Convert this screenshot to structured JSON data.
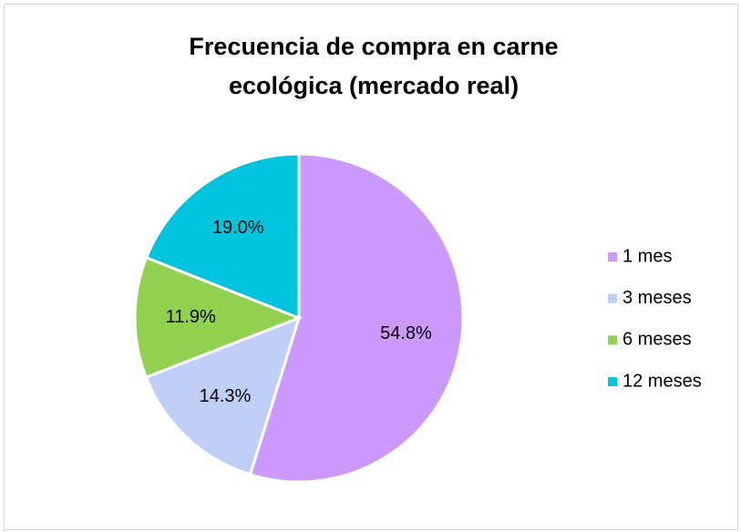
{
  "chart_data": {
    "type": "pie",
    "title": "Frecuencia de compra en carne ecológica (mercado real)",
    "categories": [
      "1 mes",
      "3 meses",
      "6 meses",
      "12 meses"
    ],
    "values": [
      54.8,
      14.3,
      11.9,
      19.0
    ],
    "value_labels": [
      "54.8%",
      "14.3%",
      "11.9%",
      "19.0%"
    ],
    "colors": [
      "#cc99ff",
      "#c0cff5",
      "#92d050",
      "#00c3de"
    ],
    "legend": "right"
  }
}
